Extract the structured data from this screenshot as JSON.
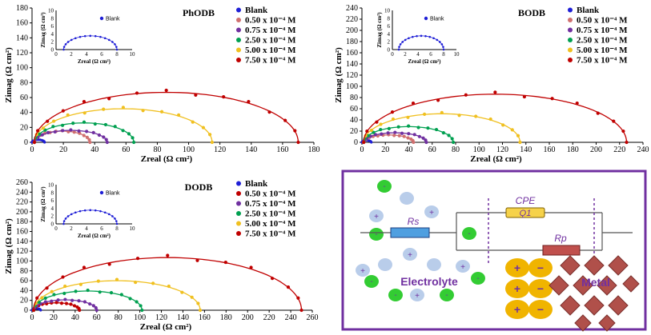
{
  "chart_data": [
    {
      "type": "scatter",
      "title": "PhODB",
      "xlabel": "Zreal (Ω cm²)",
      "ylabel": "Zimag (Ω cm²)",
      "xlim": [
        0,
        180
      ],
      "ylim": [
        0,
        180
      ],
      "xticks": [
        "0",
        "20",
        "40",
        "60",
        "80",
        "100",
        "120",
        "140",
        "160",
        "180"
      ],
      "yticks": [
        "0",
        "20",
        "40",
        "60",
        "80",
        "100",
        "120",
        "140",
        "160",
        "180"
      ],
      "series": [
        {
          "name": "Blank",
          "color": "#1f1fd6",
          "R": 8,
          "peak": 3.5
        },
        {
          "name": "0.50 x 10⁻⁴ M",
          "color": "#d07070",
          "R": 37,
          "peak": 15
        },
        {
          "name": "0.75 x 10⁻⁴ M",
          "color": "#7030a0",
          "R": 48,
          "peak": 16
        },
        {
          "name": "2.50 x 10⁻⁴ M",
          "color": "#00a050",
          "R": 65,
          "peak": 26
        },
        {
          "name": "5.00 x 10⁻⁴ M",
          "color": "#f0c020",
          "R": 115,
          "peak": 45
        },
        {
          "name": "7.50 x 10⁻⁴ M",
          "color": "#c00000",
          "R": 170,
          "peak": 67
        }
      ],
      "inset": {
        "legend": "Blank",
        "xlabel": "Zreal (Ω cm²)",
        "ylabel": "Zimag (Ω cm²)",
        "xlim": [
          0,
          10
        ],
        "ylim": [
          0,
          10
        ],
        "xticks": [
          "0",
          "2",
          "4",
          "6",
          "8",
          "10"
        ],
        "yticks": [
          "0",
          "2",
          "4",
          "6",
          "8",
          "10"
        ],
        "R": 8,
        "peak": 3.5
      }
    },
    {
      "type": "scatter",
      "title": "BODB",
      "xlabel": "Zreal (Ω cm²)",
      "ylabel": "Zimag (Ω cm²)",
      "xlim": [
        0,
        240
      ],
      "ylim": [
        0,
        240
      ],
      "xticks": [
        "0",
        "20",
        "40",
        "60",
        "80",
        "100",
        "120",
        "140",
        "160",
        "180",
        "200",
        "220",
        "240"
      ],
      "yticks": [
        "0",
        "20",
        "40",
        "60",
        "80",
        "100",
        "120",
        "140",
        "160",
        "180",
        "200",
        "220",
        "240"
      ],
      "series": [
        {
          "name": "Blank",
          "color": "#1f1fd6",
          "R": 8,
          "peak": 3.5
        },
        {
          "name": "0.50 x 10⁻⁴ M",
          "color": "#d07070",
          "R": 44,
          "peak": 13
        },
        {
          "name": "0.75 x 10⁻⁴ M",
          "color": "#7030a0",
          "R": 55,
          "peak": 17
        },
        {
          "name": "2.50 x 10⁻⁴ M",
          "color": "#00a050",
          "R": 78,
          "peak": 28
        },
        {
          "name": "5.00 x 10⁻⁴ M",
          "color": "#f0c020",
          "R": 135,
          "peak": 51
        },
        {
          "name": "7.50 x 10⁻⁴ M",
          "color": "#c00000",
          "R": 226,
          "peak": 86
        }
      ],
      "inset": {
        "legend": "Blank",
        "xlabel": "Zreal (Ω cm²)",
        "ylabel": "Zimag (Ω cm²)",
        "xlim": [
          0,
          10
        ],
        "ylim": [
          0,
          10
        ],
        "xticks": [
          "0",
          "2",
          "4",
          "6",
          "8",
          "10"
        ],
        "yticks": [
          "0",
          "2",
          "4",
          "6",
          "8",
          "10"
        ],
        "R": 8,
        "peak": 3.5
      }
    },
    {
      "type": "scatter",
      "title": "DODB",
      "xlabel": "Zreal (Ω cm²)",
      "ylabel": "Zimag (Ω cm²)",
      "xlim": [
        0,
        260
      ],
      "ylim": [
        0,
        260
      ],
      "xticks": [
        "0",
        "20",
        "40",
        "60",
        "80",
        "100",
        "120",
        "140",
        "160",
        "180",
        "200",
        "220",
        "240",
        "260"
      ],
      "yticks": [
        "0",
        "20",
        "40",
        "60",
        "80",
        "100",
        "120",
        "140",
        "160",
        "180",
        "200",
        "220",
        "240",
        "260"
      ],
      "series": [
        {
          "name": "Blank",
          "color": "#1f1fd6",
          "R": 8,
          "peak": 3.5
        },
        {
          "name": "0.50 x 10⁻⁴ M",
          "color": "#c00000",
          "R": 44,
          "peak": 15
        },
        {
          "name": "0.75 x 10⁻⁴ M",
          "color": "#7030a0",
          "R": 60,
          "peak": 21
        },
        {
          "name": "2.50 x 10⁻⁴ M",
          "color": "#00a050",
          "R": 102,
          "peak": 39
        },
        {
          "name": "5.00 x 10⁻⁴ M",
          "color": "#f0c020",
          "R": 156,
          "peak": 60
        },
        {
          "name": "7.50 x 10⁻⁴ M",
          "color": "#c00000",
          "R": 250,
          "peak": 107
        }
      ],
      "inset": {
        "legend": "Blank",
        "xlabel": "Zreal (Ω cm²)",
        "ylabel": "Zimag (Ω cm²)",
        "xlim": [
          0,
          10
        ],
        "ylim": [
          0,
          10
        ],
        "xticks": [
          "0",
          "2",
          "4",
          "6",
          "8",
          "10"
        ],
        "yticks": [
          "0",
          "2",
          "4",
          "6",
          "8",
          "10"
        ],
        "R": 8,
        "peak": 3.5
      }
    }
  ],
  "circuit": {
    "labels": {
      "rs": "Rs",
      "cpe": "CPE",
      "q1": "Q1",
      "rp": "Rp",
      "electrolyte": "Electrolyte",
      "metal": "Metal"
    },
    "colors": {
      "border": "#7030a0",
      "background": "#ffffff",
      "rs_fill": "#4f9fe0",
      "cpe_fill": "#f6d24a",
      "rp_fill": "#c0504d",
      "metal_fill": "#b0504a",
      "ion_green": "#33cc33",
      "ion_blue": "#b9cdea",
      "ion_gold": "#f0b400"
    }
  }
}
